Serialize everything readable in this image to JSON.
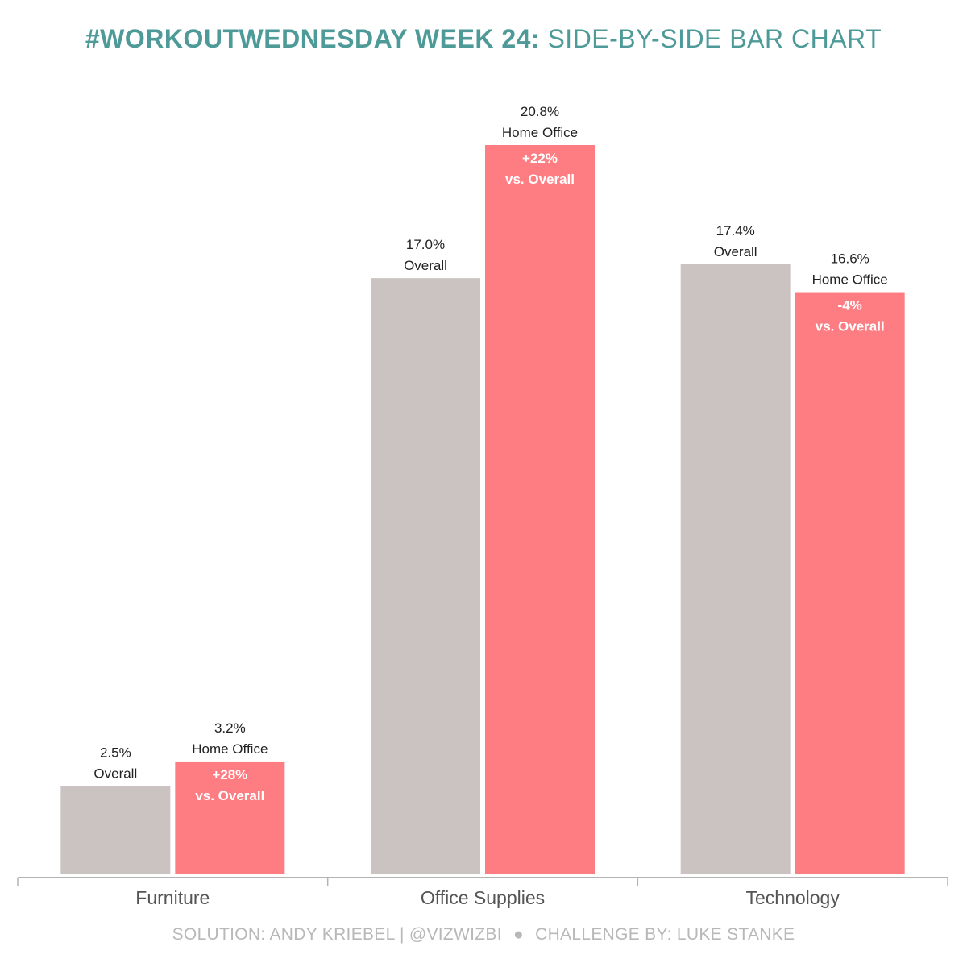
{
  "title": {
    "bold_part": "#WORKOUTWEDNESDAY WEEK 24:",
    "light_part": "SIDE-BY-SIDE BAR CHART"
  },
  "chart_data": {
    "type": "bar",
    "title": "#WORKOUTWEDNESDAY WEEK 24: SIDE-BY-SIDE BAR CHART",
    "xlabel": "",
    "ylabel": "",
    "ylim": [
      0,
      21.5
    ],
    "grid": false,
    "categories": [
      "Furniture",
      "Office Supplies",
      "Technology"
    ],
    "series": [
      {
        "name": "Overall",
        "color": "#cbc3c1",
        "values": [
          2.5,
          17.0,
          17.4
        ],
        "labels": [
          "2.5%",
          "17.0%",
          "17.4%"
        ],
        "label_suffix": "Overall"
      },
      {
        "name": "Home Office",
        "color": "#fe7d82",
        "values": [
          3.2,
          20.8,
          16.6
        ],
        "labels": [
          "3.2%",
          "20.8%",
          "16.6%"
        ],
        "label_suffix": "Home Office",
        "inner_labels": [
          "+28%",
          "+22%",
          "-4%"
        ],
        "inner_suffix": "vs. Overall"
      }
    ]
  },
  "footer": {
    "solution": "SOLUTION: ANDY KRIEBEL | @VIZWIZBI",
    "separator": "●",
    "challenge": "CHALLENGE BY: LUKE STANKE"
  },
  "colors": {
    "title": "#4e9a98",
    "overall": "#cbc3c1",
    "home_office": "#fe7d82",
    "axis": "#b3b3b3",
    "footer": "#b8b8b8"
  }
}
